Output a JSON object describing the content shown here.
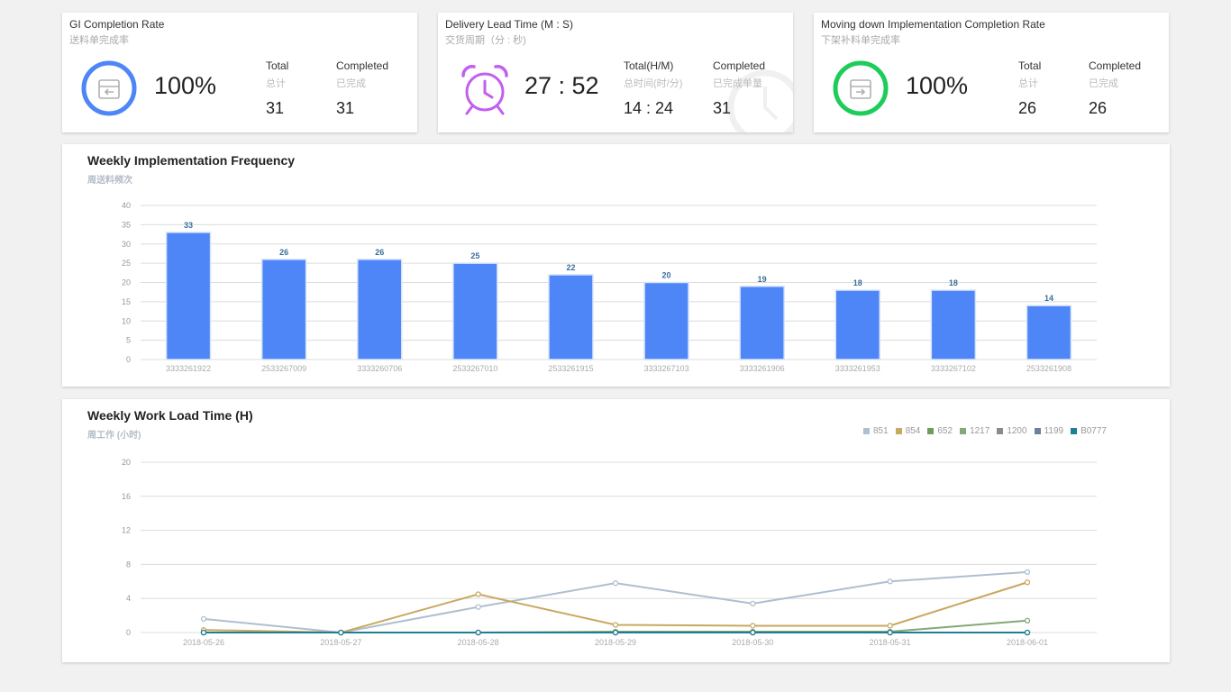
{
  "kpis": [
    {
      "title": "GI Completion Rate",
      "subtitle": "送料单完成率",
      "value": "100%",
      "icon": "box-in-icon",
      "icon_color": "#4e86f7",
      "stats": [
        {
          "label": "Total",
          "sub": "总计",
          "value": "31"
        },
        {
          "label": "Completed",
          "sub": "已完成",
          "value": "31"
        }
      ]
    },
    {
      "title": "Delivery Lead Time  (M : S)",
      "subtitle": "交货周期（分 : 秒)",
      "value": "27 : 52",
      "icon": "alarm-clock-icon",
      "icon_color": "#c35ef0",
      "stats": [
        {
          "label": "Total(H/M)",
          "sub": "总时间(时/分)",
          "value": "14 : 24"
        },
        {
          "label": "Completed",
          "sub": "已完成单量",
          "value": "31"
        }
      ]
    },
    {
      "title": "Moving down Implementation Completion Rate",
      "subtitle": "下架补料单完成率",
      "value": "100%",
      "icon": "box-out-icon",
      "icon_color": "#1ecc5a",
      "stats": [
        {
          "label": "Total",
          "sub": "总计",
          "value": "26"
        },
        {
          "label": "Completed",
          "sub": "已完成",
          "value": "26"
        }
      ]
    }
  ],
  "bar_chart": {
    "title": "Weekly Implementation Frequency",
    "subtitle": "周送料频次"
  },
  "line_chart": {
    "title": "Weekly Work Load Time (H)",
    "subtitle": "周工作 (小时)"
  },
  "chart_data": [
    {
      "type": "bar",
      "categories": [
        "3333261922",
        "2533267009",
        "3333260706",
        "2533267010",
        "2533261915",
        "3333267103",
        "3333261906",
        "3333261953",
        "3333267102",
        "2533261908"
      ],
      "values": [
        33,
        26,
        26,
        25,
        22,
        20,
        19,
        18,
        18,
        14
      ],
      "ylim": [
        0,
        40
      ],
      "yticks": [
        0,
        5,
        10,
        15,
        20,
        25,
        30,
        35,
        40
      ],
      "grid": true,
      "bar_color": "#4e86f7",
      "label_color": "#3a6e9e"
    },
    {
      "type": "line",
      "x": [
        "2018-05-26",
        "2018-05-27",
        "2018-05-28",
        "2018-05-29",
        "2018-05-30",
        "2018-05-31",
        "2018-06-01"
      ],
      "ylim": [
        0,
        20
      ],
      "yticks": [
        0,
        4,
        8,
        12,
        16,
        20
      ],
      "grid": true,
      "legend_position": "top-right",
      "series": [
        {
          "name": "851",
          "color": "#aebfcf",
          "values": [
            1.6,
            0,
            3.0,
            5.8,
            3.4,
            6.0,
            7.1
          ]
        },
        {
          "name": "854",
          "color": "#c9a860",
          "values": [
            0.3,
            0,
            4.5,
            0.9,
            0.8,
            0.8,
            5.9
          ]
        },
        {
          "name": "652",
          "color": "#6f9e5c",
          "values": [
            0,
            0,
            0,
            0,
            0,
            0,
            0
          ]
        },
        {
          "name": "1217",
          "color": "#84a878",
          "values": [
            0,
            0,
            0,
            0.1,
            0.1,
            0.1,
            1.4
          ]
        },
        {
          "name": "1200",
          "color": "#8a8a8a",
          "values": [
            0,
            0,
            0,
            0,
            0,
            0,
            0
          ]
        },
        {
          "name": "1199",
          "color": "#6c7fa3",
          "values": [
            0,
            0,
            0,
            0,
            0,
            0,
            0
          ]
        },
        {
          "name": "B0777",
          "color": "#1f7e94",
          "values": [
            0,
            0,
            0,
            0,
            0,
            0,
            0
          ]
        }
      ]
    }
  ]
}
